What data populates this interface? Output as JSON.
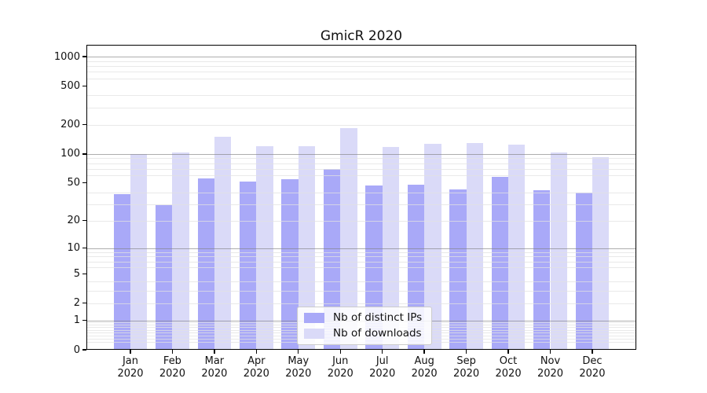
{
  "chart_data": {
    "type": "bar",
    "title": "GmicR 2020",
    "categories": [
      "Jan",
      "Feb",
      "Mar",
      "Apr",
      "May",
      "Jun",
      "Jul",
      "Aug",
      "Sep",
      "Oct",
      "Nov",
      "Dec"
    ],
    "x_tick_second_line": "2020",
    "series": [
      {
        "name": "Nb of distinct IPs",
        "color": "#a9a9f8",
        "values": [
          38,
          29,
          56,
          52,
          55,
          70,
          47,
          48,
          43,
          58,
          42,
          40
        ]
      },
      {
        "name": "Nb of downloads",
        "color": "#dadaf8",
        "values": [
          100,
          103,
          150,
          120,
          120,
          183,
          117,
          128,
          130,
          125,
          103,
          92
        ]
      }
    ],
    "y_axis": {
      "scale": "log10(y+1)",
      "tick_values": [
        0,
        1,
        2,
        5,
        10,
        20,
        50,
        100,
        200,
        500,
        1000
      ],
      "tick_labels": [
        "0",
        "1",
        "2",
        "5",
        "10",
        "20",
        "50",
        "100",
        "200",
        "500",
        "1000"
      ],
      "major_gridlines": [
        1,
        10,
        100,
        1000
      ],
      "minor_gridlines": [
        0.2,
        0.3,
        0.4,
        0.5,
        0.6,
        0.7,
        0.8,
        0.9,
        2,
        3,
        4,
        6,
        7,
        8,
        9,
        20,
        30,
        40,
        60,
        70,
        80,
        90,
        200,
        300,
        400,
        600,
        700,
        800,
        900
      ],
      "ylim_top": 1320
    },
    "legend": {
      "position": "lower center"
    },
    "colors": {
      "bar_ips": "#a9a9f8",
      "bar_downloads": "#dadaf8",
      "grid_major": "#9e9e9e",
      "grid_minor": "#e7e7e7",
      "axis": "#000000",
      "background": "#ffffff",
      "text": "#111111"
    }
  }
}
